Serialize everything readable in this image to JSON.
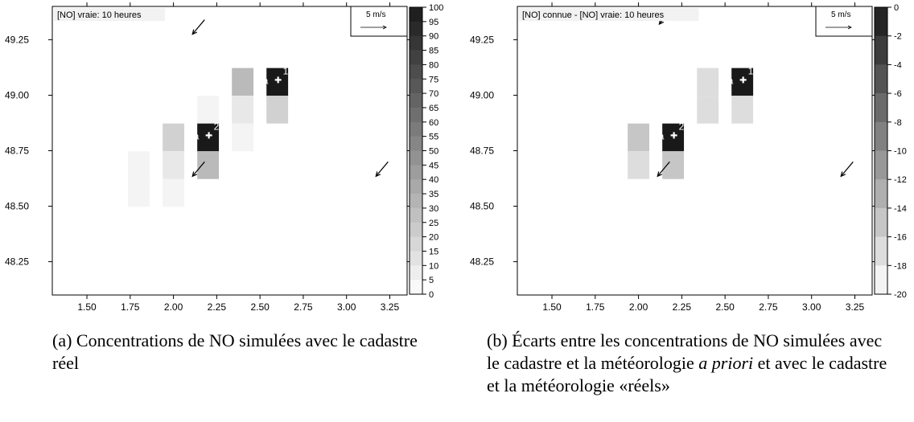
{
  "chart_data": [
    {
      "type": "heatmap",
      "title": "[NO] vraie: 10 heures",
      "xlabel": "",
      "ylabel": "",
      "xlim": [
        1.3,
        3.35
      ],
      "ylim": [
        48.1,
        49.4
      ],
      "xticks": [
        "1.50",
        "1.75",
        "2.00",
        "2.25",
        "2.50",
        "2.75",
        "3.00",
        "3.25"
      ],
      "xtick_values": [
        1.5,
        1.75,
        2.0,
        2.25,
        2.5,
        2.75,
        3.0,
        3.25
      ],
      "yticks": [
        "48.25",
        "48.50",
        "48.75",
        "49.00",
        "49.25"
      ],
      "ytick_values": [
        48.25,
        48.5,
        48.75,
        49.0,
        49.25
      ],
      "grid": false,
      "cell_size": [
        0.125,
        0.125
      ],
      "cells": [
        {
          "x": 1.8,
          "y": 48.685,
          "value": 5
        },
        {
          "x": 1.8,
          "y": 48.56,
          "value": 5
        },
        {
          "x": 2.0,
          "y": 48.81,
          "value": 20
        },
        {
          "x": 2.0,
          "y": 48.685,
          "value": 10
        },
        {
          "x": 2.0,
          "y": 48.56,
          "value": 5
        },
        {
          "x": 2.2,
          "y": 48.935,
          "value": 5
        },
        {
          "x": 2.2,
          "y": 48.81,
          "value": 100
        },
        {
          "x": 2.2,
          "y": 48.685,
          "value": 30
        },
        {
          "x": 2.4,
          "y": 49.06,
          "value": 30
        },
        {
          "x": 2.4,
          "y": 48.935,
          "value": 10
        },
        {
          "x": 2.4,
          "y": 48.81,
          "value": 5
        },
        {
          "x": 2.6,
          "y": 49.06,
          "value": 100
        },
        {
          "x": 2.6,
          "y": 48.935,
          "value": 20
        }
      ],
      "stations": [
        {
          "x": 2.6,
          "y": 49.08,
          "label": "a",
          "index": "1"
        },
        {
          "x": 2.2,
          "y": 48.83,
          "label": "a",
          "index": "2"
        }
      ],
      "wind_arrows": [
        {
          "x": 2.18,
          "y": 49.34,
          "u": -0.07,
          "v": -0.065
        },
        {
          "x": 2.18,
          "y": 48.7,
          "u": -0.07,
          "v": -0.065
        },
        {
          "x": 3.24,
          "y": 48.7,
          "u": -0.07,
          "v": -0.065
        }
      ],
      "wind_legend": {
        "label": "5 m/s"
      },
      "colorbar": {
        "min": 0,
        "max": 100,
        "ticks": [
          "0",
          "5",
          "10",
          "15",
          "20",
          "25",
          "30",
          "35",
          "40",
          "45",
          "50",
          "55",
          "60",
          "65",
          "70",
          "75",
          "80",
          "85",
          "90",
          "95",
          "100"
        ],
        "tick_values": [
          0,
          5,
          10,
          15,
          20,
          25,
          30,
          35,
          40,
          45,
          50,
          55,
          60,
          65,
          70,
          75,
          80,
          85,
          90,
          95,
          100
        ],
        "scale": "dark_high"
      }
    },
    {
      "type": "heatmap",
      "title": "[NO] connue - [NO] vraie: 10 heures",
      "xlabel": "",
      "ylabel": "",
      "xlim": [
        1.3,
        3.35
      ],
      "ylim": [
        48.1,
        49.4
      ],
      "xticks": [
        "1.50",
        "1.75",
        "2.00",
        "2.25",
        "2.50",
        "2.75",
        "3.00",
        "3.25"
      ],
      "xtick_values": [
        1.5,
        1.75,
        2.0,
        2.25,
        2.5,
        2.75,
        3.0,
        3.25
      ],
      "yticks": [
        "48.25",
        "48.50",
        "48.75",
        "49.00",
        "49.25"
      ],
      "ytick_values": [
        48.25,
        48.5,
        48.75,
        49.0,
        49.25
      ],
      "grid": false,
      "cell_size": [
        0.125,
        0.125
      ],
      "cells": [
        {
          "x": 2.0,
          "y": 48.81,
          "value": -5
        },
        {
          "x": 2.0,
          "y": 48.685,
          "value": -3
        },
        {
          "x": 2.2,
          "y": 48.81,
          "value": -20
        },
        {
          "x": 2.2,
          "y": 48.685,
          "value": -5
        },
        {
          "x": 2.4,
          "y": 49.06,
          "value": -3
        },
        {
          "x": 2.4,
          "y": 48.935,
          "value": -3
        },
        {
          "x": 2.6,
          "y": 49.06,
          "value": -20
        },
        {
          "x": 2.6,
          "y": 48.935,
          "value": -3
        }
      ],
      "stations": [
        {
          "x": 2.6,
          "y": 49.08,
          "label": "a",
          "index": "1"
        },
        {
          "x": 2.2,
          "y": 48.83,
          "label": "a",
          "index": "2"
        }
      ],
      "wind_arrows": [
        {
          "x": 2.16,
          "y": 49.36,
          "u": -0.04,
          "v": -0.04
        },
        {
          "x": 2.18,
          "y": 48.7,
          "u": -0.07,
          "v": -0.065
        },
        {
          "x": 3.24,
          "y": 48.7,
          "u": -0.07,
          "v": -0.065
        }
      ],
      "wind_legend": {
        "label": "5 m/s"
      },
      "colorbar": {
        "min": -20,
        "max": 0,
        "ticks": [
          "0",
          "-2",
          "-4",
          "-6",
          "-8",
          "-10",
          "-12",
          "-14",
          "-16",
          "-18",
          "-20"
        ],
        "tick_values": [
          0,
          -2,
          -4,
          -6,
          -8,
          -10,
          -12,
          -14,
          -16,
          -18,
          -20
        ],
        "scale": "dark_low"
      }
    }
  ],
  "captions": {
    "a": "(a) Concentrations de NO simulées avec le cadastre réel",
    "b_part1": "(b) Écarts entre les concentrations de NO simulées avec le cadastre et la météorologie ",
    "b_italic": "a priori",
    "b_part2": " et avec le cadastre et la météorologie «réels»"
  }
}
